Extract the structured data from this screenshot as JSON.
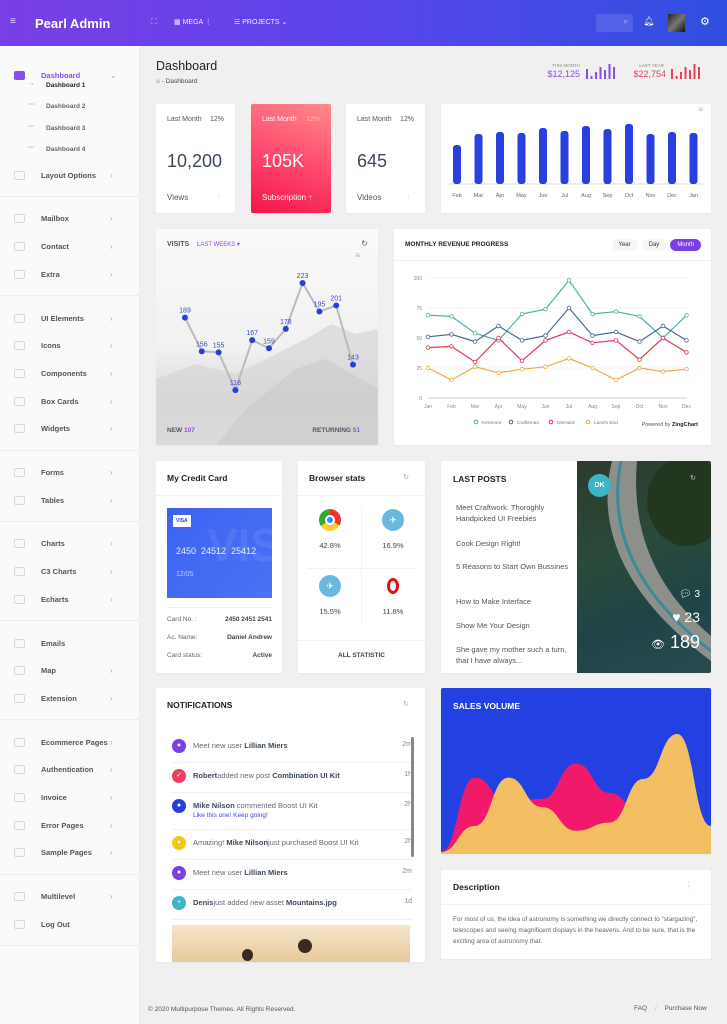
{
  "header": {
    "brand": "Pearl Admin",
    "mega": "MEGA",
    "projects": "PROJECTS",
    "colors": {
      "start": "#7a3fe6",
      "end": "#2f4fe0"
    }
  },
  "sidebar": {
    "items": [
      {
        "label": "Dashboard",
        "icon": "monitor-icon",
        "active": true,
        "chevron": "⌄"
      },
      {
        "sub": true,
        "label": "Dashboard 1",
        "marker": "→",
        "current": true
      },
      {
        "sub": true,
        "label": "Dashboard 2",
        "marker": "···"
      },
      {
        "sub": true,
        "label": "Dashboard 3",
        "marker": "···"
      },
      {
        "sub": true,
        "label": "Dashboard 4",
        "marker": "···"
      },
      {
        "label": "Layout Options",
        "icon": "display-icon",
        "chevron": "›"
      },
      {
        "divider": true
      },
      {
        "label": "Mailbox",
        "icon": "mail-icon",
        "chevron": "›"
      },
      {
        "label": "Contact",
        "icon": "contact-icon",
        "chevron": "›"
      },
      {
        "label": "Extra",
        "icon": "copy-icon",
        "chevron": "›"
      },
      {
        "divider": true
      },
      {
        "label": "UI Elements",
        "icon": "crop-icon",
        "chevron": "›"
      },
      {
        "label": "Icons",
        "icon": "info-icon",
        "chevron": "›"
      },
      {
        "label": "Components",
        "icon": "grid-icon",
        "chevron": "›"
      },
      {
        "label": "Box Cards",
        "icon": "box-icon",
        "chevron": "›"
      },
      {
        "label": "Widgets",
        "icon": "widget-icon",
        "chevron": "›"
      },
      {
        "divider": true
      },
      {
        "label": "Forms",
        "icon": "pen-icon",
        "chevron": "›"
      },
      {
        "label": "Tables",
        "icon": "table-icon",
        "chevron": "›"
      },
      {
        "divider": true
      },
      {
        "label": "Charts",
        "icon": "bar-chart-icon",
        "chevron": "›"
      },
      {
        "label": "C3 Charts",
        "icon": "area-chart-icon",
        "chevron": "›"
      },
      {
        "label": "Echarts",
        "icon": "donut-icon",
        "chevron": "›"
      },
      {
        "divider": true
      },
      {
        "label": "Emails",
        "icon": "envelope-icon",
        "chevron": ""
      },
      {
        "label": "Map",
        "icon": "map-icon",
        "chevron": "›"
      },
      {
        "label": "Extension",
        "icon": "plug-icon",
        "chevron": "›"
      },
      {
        "divider": true
      },
      {
        "label": "Ecommerce Pages",
        "icon": "basket-icon",
        "chevron": "›"
      },
      {
        "label": "Authentication",
        "icon": "gear-icon",
        "chevron": "›"
      },
      {
        "label": "Invoice",
        "icon": "pencil-icon",
        "chevron": "›"
      },
      {
        "label": "Error Pages",
        "icon": "warning-icon",
        "chevron": "›"
      },
      {
        "label": "Sample Pages",
        "icon": "printer-icon",
        "chevron": "›"
      },
      {
        "divider": true
      },
      {
        "label": "Multilevel",
        "icon": "list-icon",
        "chevron": "›"
      },
      {
        "label": "Log Out",
        "icon": "logout-icon",
        "chevron": ""
      },
      {
        "divider": true
      }
    ]
  },
  "page": {
    "title": "Dashboard",
    "breadcrumb": "Dashboard",
    "this_month_label": "THIS MONTH",
    "this_month": "$12,125",
    "last_year_label": "LAST YEAR",
    "last_year": "$22,754",
    "this_month_color": "#8a4de8",
    "last_year_color": "#e8415e"
  },
  "stats": [
    {
      "period": "Last Month",
      "pct": "12%",
      "value": "10,200",
      "label": "Views"
    },
    {
      "period": "Last Month",
      "pct": "12%",
      "value": "105K",
      "label": "Subscription"
    },
    {
      "period": "Last Month",
      "pct": "12%",
      "value": "645",
      "label": "Videos"
    }
  ],
  "chart_data": [
    {
      "type": "bar",
      "categories": [
        "Feb",
        "Mar",
        "Apr",
        "May",
        "Jun",
        "Jul",
        "Aug",
        "Sep",
        "Oct",
        "Nov",
        "Dec",
        "Jan"
      ],
      "values": [
        39,
        50,
        52,
        51,
        56,
        53,
        58,
        55,
        60,
        50,
        52,
        51
      ],
      "color": "#2a3fe0"
    },
    {
      "type": "line",
      "title": "VISITS",
      "filter": "LAST WEEKS",
      "values": [
        189,
        156,
        155,
        118,
        167,
        159,
        178,
        223,
        195,
        201,
        143
      ],
      "new_label": "NEW",
      "new": "107",
      "returning_label": "RETURNING",
      "returning": "51"
    },
    {
      "type": "line",
      "title": "MONTHLY REVENUE PROGRESS",
      "tabs": [
        "Year",
        "Day",
        "Month"
      ],
      "active_tab": "Month",
      "categories": [
        "Jan",
        "Feb",
        "Mar",
        "Apr",
        "May",
        "Jun",
        "Jul",
        "Aug",
        "Sep",
        "Oct",
        "Nov",
        "Dec"
      ],
      "ylim": [
        0,
        100
      ],
      "yticks": [
        0,
        25,
        50,
        75,
        100
      ],
      "powered_by": "Powered by",
      "brand": "ZingChart",
      "series": [
        {
          "name": "Kenmore",
          "color": "#4fb0a4",
          "values": [
            69,
            68,
            54,
            48,
            70,
            74,
            98,
            70,
            72,
            68,
            50,
            69
          ]
        },
        {
          "name": "Craftsman",
          "color": "#4a6a8f",
          "values": [
            51,
            53,
            47,
            60,
            48,
            52,
            75,
            52,
            55,
            47,
            60,
            48
          ]
        },
        {
          "name": "DieHard",
          "color": "#e0345e",
          "values": [
            42,
            43,
            30,
            50,
            31,
            48,
            55,
            46,
            48,
            32,
            50,
            38
          ]
        },
        {
          "name": "Land's End",
          "color": "#f2a93b",
          "values": [
            25,
            15,
            26,
            21,
            24,
            26,
            33,
            25,
            15,
            25,
            22,
            24
          ]
        }
      ]
    },
    {
      "type": "area",
      "title": "SALES VOLUME",
      "series": [
        {
          "color": "#f0196a",
          "values": [
            0,
            63,
            42,
            45,
            75,
            50,
            30,
            22,
            12
          ]
        },
        {
          "color": "#f2c062",
          "values": [
            0,
            22,
            63,
            38,
            18,
            25,
            62,
            100,
            22
          ]
        }
      ]
    }
  ],
  "credit": {
    "title": "My Credit Card",
    "brand": "VISA",
    "number": "2450  24512  25412",
    "expiry": "12/05",
    "rows": [
      {
        "k": "Card No. :",
        "v": "2450 2451 2541"
      },
      {
        "k": "Ac. Name:",
        "v": "Daniel Andrew"
      },
      {
        "k": "Card status:",
        "v": "Active"
      }
    ]
  },
  "browsers": {
    "title": "Browser stats",
    "items": [
      {
        "icon": "chrome-icon",
        "pct": "42.8%"
      },
      {
        "icon": "safari-icon",
        "pct": "16.9%"
      },
      {
        "icon": "safari-icon",
        "pct": "15.5%"
      },
      {
        "icon": "opera-icon",
        "pct": "11.8%"
      }
    ],
    "footer": "ALL STATISTIC"
  },
  "posts": {
    "title": "LAST POSTS",
    "items": [
      "Meet Craftwork. Thoroghly Handpicked UI Freebies",
      "Cook Design Right!",
      "5 Reasons to Start Own Bussines",
      "How to Make Interface",
      "Show Me Your Design",
      "She gave my mother such a turn, that I have always..."
    ],
    "avatar": "DK",
    "comments": "3",
    "likes": "23",
    "views": "189"
  },
  "notifications": {
    "title": "NOTIFICATIONS",
    "items": [
      {
        "color": "#7a3fe6",
        "glyph": "●",
        "pre": "Meet new user ",
        "b1": "Lillian Miers",
        "mid": "",
        "b2": "",
        "sub": "",
        "time": "2m"
      },
      {
        "color": "#e8415e",
        "glyph": "✓",
        "pre": "",
        "b1": "Robert",
        "mid": "added new post ",
        "b2": "Combination UI Kit",
        "sub": "",
        "time": "1h"
      },
      {
        "color": "#2a3fe0",
        "glyph": "●",
        "pre": "",
        "b1": "Mike Nilson",
        "mid": " commented Boost UI Kit",
        "b2": "",
        "sub": "Like this one! Keep going!",
        "time": "2h"
      },
      {
        "color": "#f5c518",
        "glyph": "●",
        "pre": "Amazing! ",
        "b1": "Mike Nilson",
        "mid": "just purchased Boost UI Kit",
        "b2": "",
        "sub": "",
        "time": "2h"
      },
      {
        "color": "#7a3fe6",
        "glyph": "●",
        "pre": "Meet new user ",
        "b1": "Lillian Miers",
        "mid": "",
        "b2": "",
        "sub": "",
        "time": "2m"
      },
      {
        "color": "#3bb6c5",
        "glyph": "+",
        "pre": "",
        "b1": "Denis",
        "mid": "just added new asset ",
        "b2": "Mountains.jpg",
        "sub": "",
        "time": "1d"
      }
    ]
  },
  "description": {
    "title": "Description",
    "text": "For most of us, the idea of astronomy is something we directly connect to \"stargazing\", telescopes and seeing magnificent displays in the heavens. And to be sure, that is the exciting area of astronomy that."
  },
  "footer": {
    "copyright": "© 2020 Multipurpose Themes. All Rights Reserved.",
    "faq": "FAQ",
    "sep": "/",
    "purchase": "Purchase Now"
  }
}
